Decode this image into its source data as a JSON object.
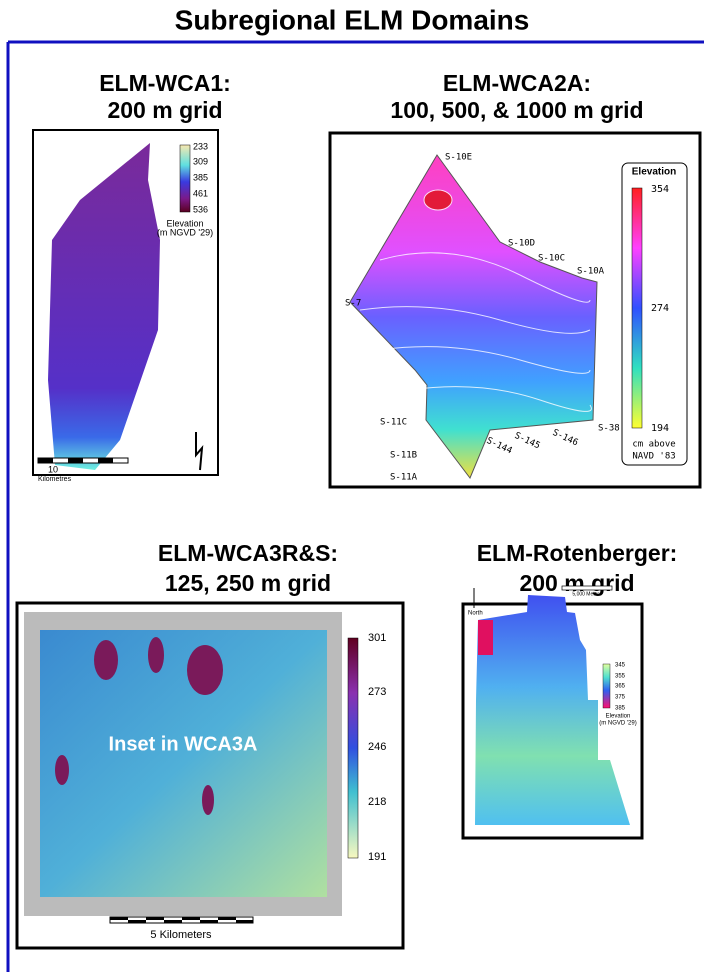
{
  "header": {
    "title": "Subregional ELM Domains"
  },
  "panels": [
    {
      "title": [
        "ELM-WCA1:",
        "200 m grid"
      ],
      "legend_ticks": [
        "233",
        "309",
        "385",
        "461",
        "536"
      ],
      "legend_caption": [
        "Elevation",
        "(m NGVD '29)"
      ],
      "scale": [
        "10",
        "Kilometres"
      ]
    },
    {
      "title": [
        "ELM-WCA2A:",
        "100, 500, & 1000 m grid"
      ],
      "legend_title": "Elevation",
      "legend_ticks": [
        "354",
        "274",
        "194"
      ],
      "legend_caption": [
        "cm above",
        "NAVD '83"
      ],
      "stations": [
        "S-10E",
        "S-10D",
        "S-10C",
        "S-10A",
        "S-7",
        "S-11C",
        "S-11B",
        "S-11A",
        "S-144",
        "S-145",
        "S-146",
        "S-38"
      ]
    },
    {
      "title": [
        "ELM-WCA3R&S:",
        "125, 250 m grid"
      ],
      "inset_label": "Inset in WCA3A",
      "legend_ticks": [
        "301",
        "273",
        "246",
        "218",
        "191"
      ],
      "scale": "5 Kilometers"
    },
    {
      "title": [
        "ELM-Rotenberger:",
        "200 m grid"
      ],
      "scale": "5,000 Meters",
      "north": "North",
      "legend_ticks": [
        "345",
        "355",
        "365",
        "375",
        "385"
      ],
      "legend_caption": [
        "Elevation",
        "(m NGVD '29)"
      ]
    }
  ]
}
